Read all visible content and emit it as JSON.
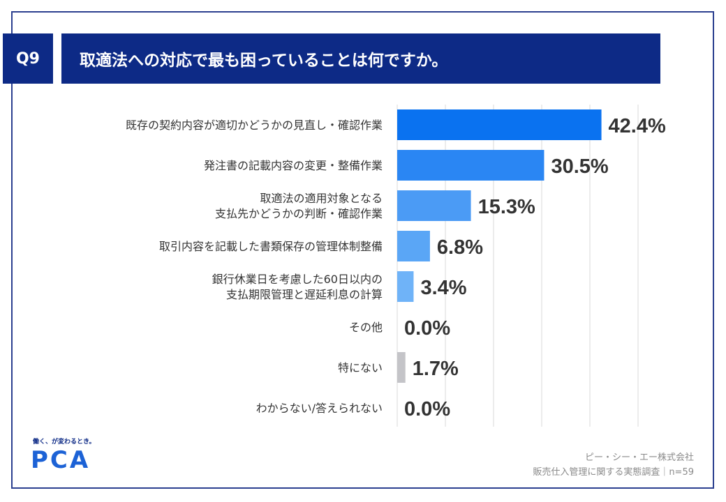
{
  "header": {
    "question_no": "Q9",
    "title": "取適法への対応で最も困っていることは何ですか。"
  },
  "chart_data": {
    "type": "bar",
    "orientation": "horizontal",
    "categories": [
      "既存の契約内容が適切かどうかの見直し・確認作業",
      "発注書の記載内容の変更・整備作業",
      "取適法の適用対象となる\n支払先かどうかの判断・確認作業",
      "取引内容を記載した書類保存の管理体制整備",
      "銀行休業日を考慮した60日以内の\n支払期限管理と遅延利息の計算",
      "その他",
      "特にない",
      "わからない/答えられない"
    ],
    "values": [
      42.4,
      30.5,
      15.3,
      6.8,
      3.4,
      0.0,
      1.7,
      0.0
    ],
    "value_labels": [
      "42.4%",
      "30.5%",
      "15.3%",
      "6.8%",
      "3.4%",
      "0.0%",
      "1.7%",
      "0.0%"
    ],
    "colors": [
      "#0a72f0",
      "#2a86f3",
      "#4b9bf5",
      "#5aa6f6",
      "#6fb3f8",
      "#6fb3f8",
      "#c4c4c8",
      "#c4c4c8"
    ],
    "xlim": [
      0,
      50
    ],
    "grid": true
  },
  "brand": {
    "tagline": "働く、が変わるとき。",
    "logo": "PCA"
  },
  "footer": {
    "company": "ピー・シー・エー株式会社",
    "survey": "販売仕入管理に関する実態調査｜n=59"
  }
}
